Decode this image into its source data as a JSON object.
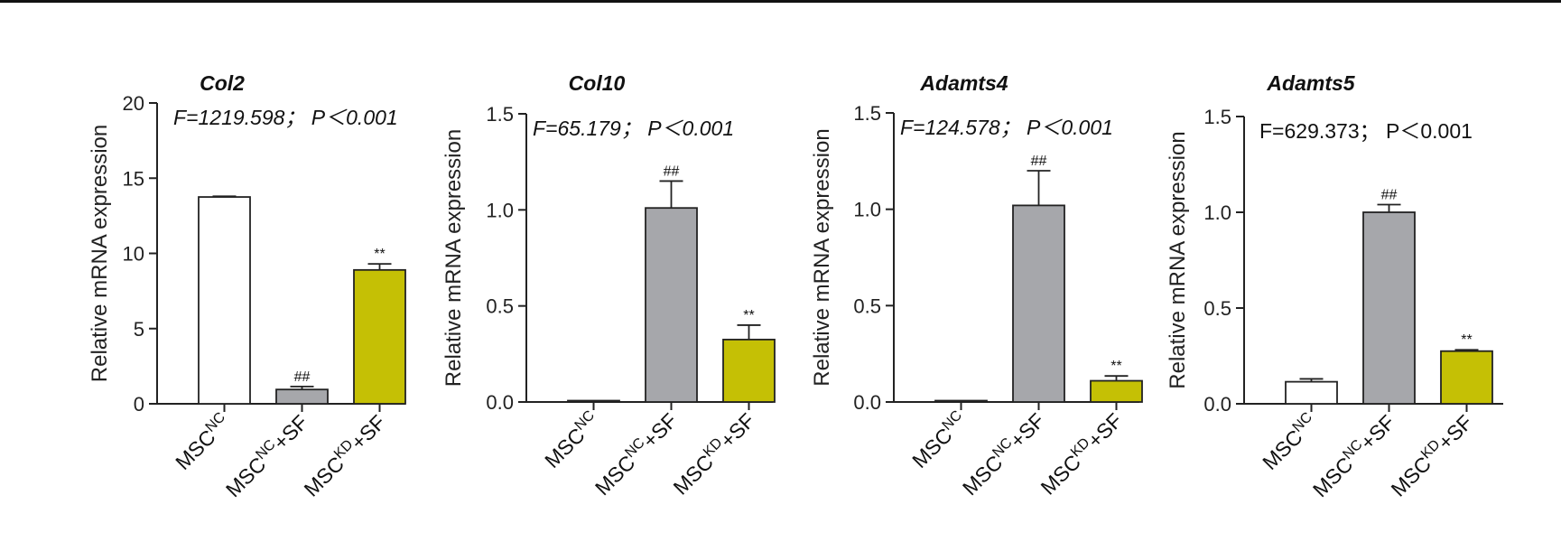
{
  "colors": {
    "control": "#ffffff",
    "nc_sf": "#a6a7ab",
    "kd_sf": "#c5c005"
  },
  "chart_data": [
    {
      "type": "bar",
      "title": "Col2",
      "ylabel": "Relative mRNA expression",
      "stat_text": "F=1219.598； P＜0.001",
      "stat_italic": true,
      "ylim": [
        0,
        20
      ],
      "yticks": [
        "0",
        "5",
        "10",
        "15",
        "20"
      ],
      "categories": [
        {
          "base": "MSC",
          "sup": "NC",
          "tail": ""
        },
        {
          "base": "MSC",
          "sup": "NC",
          "tail": "+SF"
        },
        {
          "base": "MSC",
          "sup": "KD",
          "tail": "+SF"
        }
      ],
      "values": [
        13.75,
        0.95,
        8.9
      ],
      "errors": [
        0.05,
        0.2,
        0.4
      ],
      "sig": [
        "",
        "##",
        "**"
      ]
    },
    {
      "type": "bar",
      "title": "Col10",
      "ylabel": "Relative mRNA expression",
      "stat_text": "F=65.179； P＜0.001",
      "stat_italic": true,
      "ylim": [
        0,
        1.5
      ],
      "yticks": [
        "0.0",
        "0.5",
        "1.0",
        "1.5"
      ],
      "categories": [
        {
          "base": "MSC",
          "sup": "NC",
          "tail": ""
        },
        {
          "base": "MSC",
          "sup": "NC",
          "tail": "+SF"
        },
        {
          "base": "MSC",
          "sup": "KD",
          "tail": "+SF"
        }
      ],
      "values": [
        0.003,
        1.01,
        0.325
      ],
      "errors": [
        0.0,
        0.14,
        0.075
      ],
      "sig": [
        "",
        "##",
        "**"
      ]
    },
    {
      "type": "bar",
      "title": "Adamts4",
      "ylabel": "Relative mRNA expression",
      "stat_text": "F=124.578； P＜0.001",
      "stat_italic": true,
      "ylim": [
        0,
        1.5
      ],
      "yticks": [
        "0.0",
        "0.5",
        "1.0",
        "1.5"
      ],
      "categories": [
        {
          "base": "MSC",
          "sup": "NC",
          "tail": ""
        },
        {
          "base": "MSC",
          "sup": "NC",
          "tail": "+SF"
        },
        {
          "base": "MSC",
          "sup": "KD",
          "tail": "+SF"
        }
      ],
      "values": [
        0.003,
        1.02,
        0.11
      ],
      "errors": [
        0.0,
        0.18,
        0.025
      ],
      "sig": [
        "",
        "##",
        "**"
      ]
    },
    {
      "type": "bar",
      "title": "Adamts5",
      "ylabel": "Relative mRNA expression",
      "stat_text": "F=629.373； P＜0.001",
      "stat_italic": false,
      "ylim": [
        0,
        1.5
      ],
      "yticks": [
        "0.0",
        "0.5",
        "1.0",
        "1.5"
      ],
      "categories": [
        {
          "base": "MSC",
          "sup": "NC",
          "tail": ""
        },
        {
          "base": "MSC",
          "sup": "NC",
          "tail": "+SF"
        },
        {
          "base": "MSC",
          "sup": "KD",
          "tail": "+SF"
        }
      ],
      "values": [
        0.115,
        1.0,
        0.275
      ],
      "errors": [
        0.015,
        0.04,
        0.007
      ],
      "sig": [
        "",
        "##",
        "**"
      ]
    }
  ]
}
